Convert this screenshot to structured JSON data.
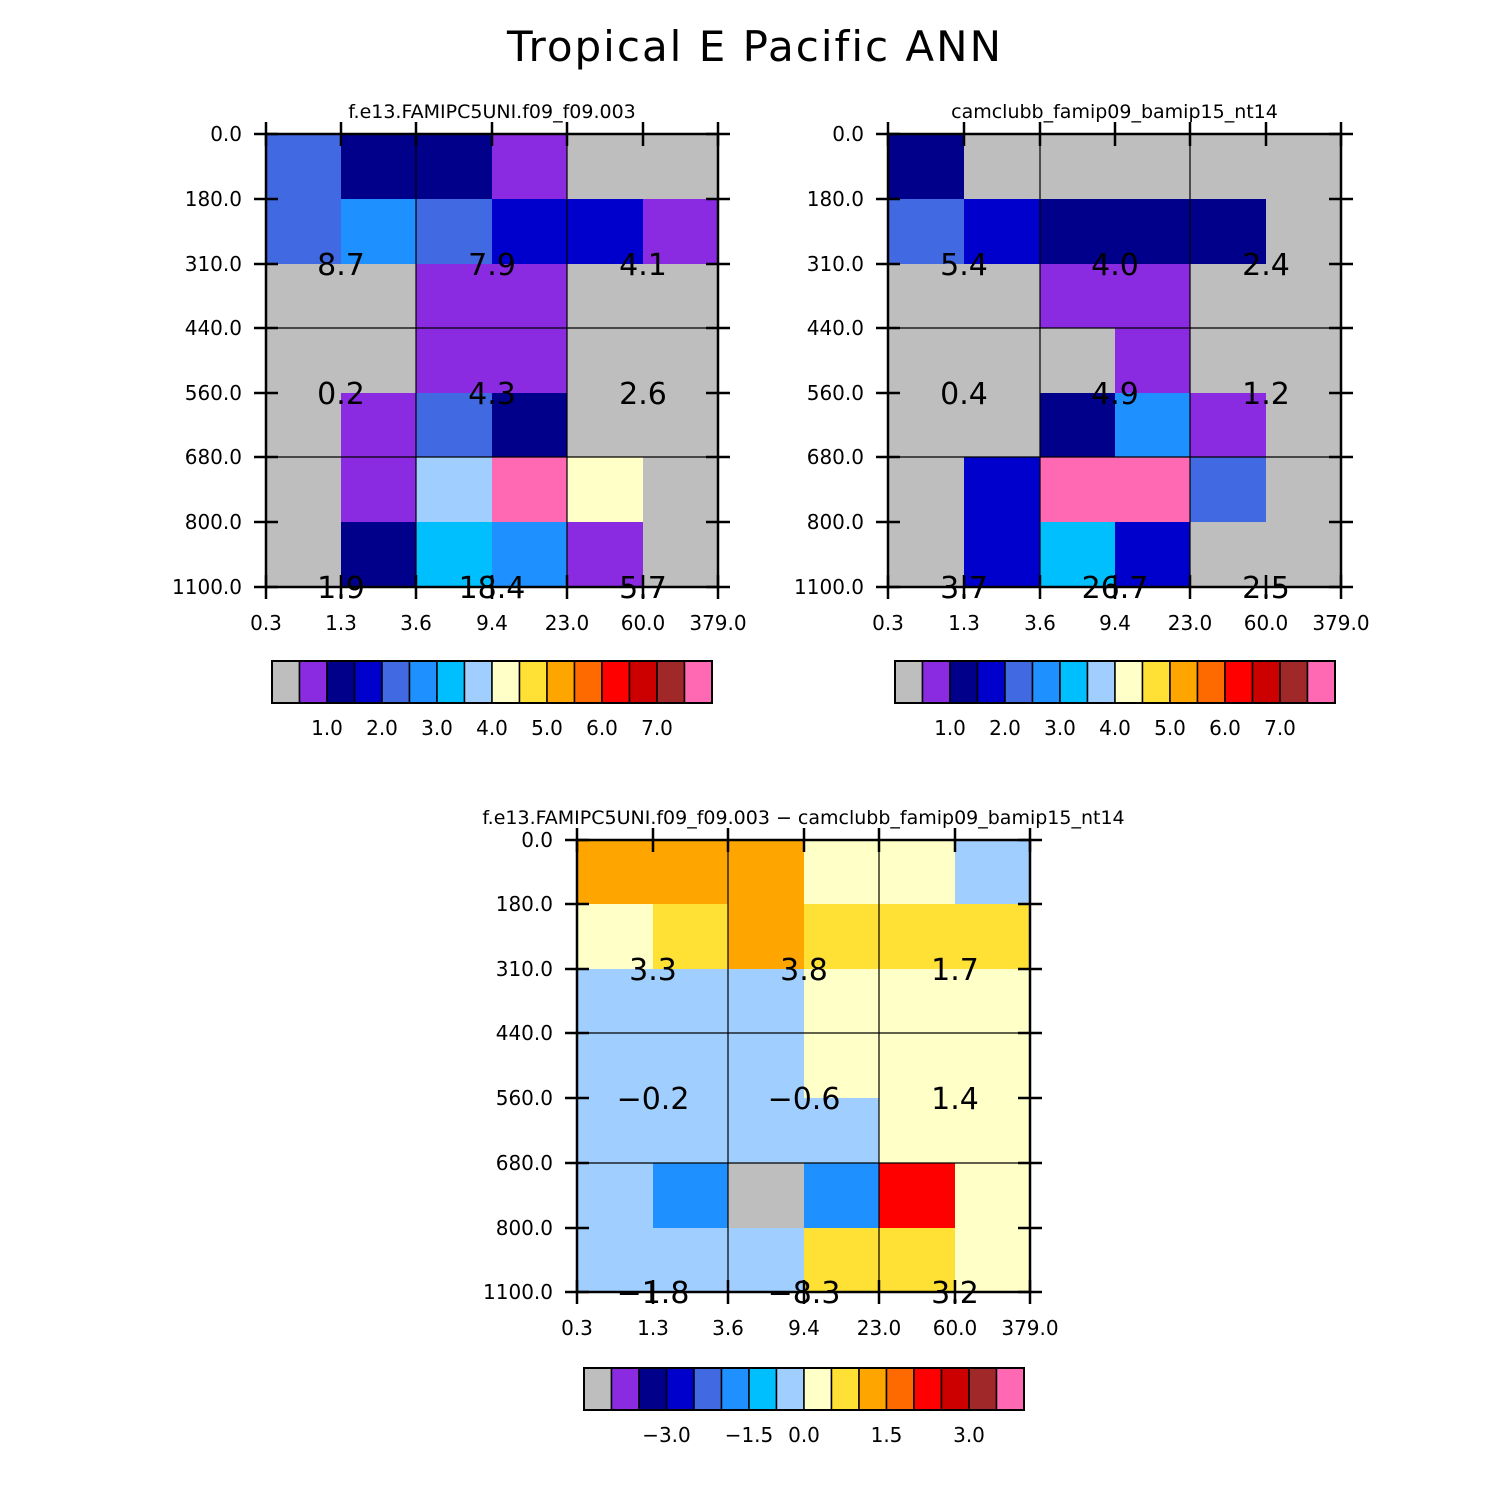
{
  "title": "Tropical E Pacific ANN",
  "colors": {
    "palette": [
      "#bebebe",
      "#8a2be2",
      "#00008b",
      "#0000cd",
      "#4169e1",
      "#1e90ff",
      "#00bfff",
      "#a0cfff",
      "#ffffc8",
      "#ffe135",
      "#ffa500",
      "#ff6a00",
      "#ff0000",
      "#cd0000",
      "#a02828",
      "#ff69b4"
    ],
    "background": "#ffffff",
    "axis": "#000000"
  },
  "chart_data": [
    {
      "type": "heatmap",
      "title": "f.e13.FAMIPC5UNI.f09_f09.003",
      "x_ticks": [
        "0.3",
        "1.3",
        "3.6",
        "9.4",
        "23.0",
        "60.0",
        "379.0"
      ],
      "y_ticks": [
        "0.0",
        "180.0",
        "310.0",
        "440.0",
        "560.0",
        "680.0",
        "800.0",
        "1100.0"
      ],
      "cells": [
        [
          4,
          2,
          2,
          1,
          0,
          0
        ],
        [
          4,
          5,
          4,
          3,
          3,
          1
        ],
        [
          0,
          0,
          1,
          1,
          0,
          0
        ],
        [
          0,
          0,
          1,
          1,
          0,
          0
        ],
        [
          0,
          1,
          4,
          2,
          0,
          0
        ],
        [
          0,
          1,
          7,
          15,
          8,
          0
        ],
        [
          0,
          2,
          6,
          5,
          1,
          0
        ]
      ],
      "annotations": [
        {
          "row": 1,
          "col": 1,
          "text": "8.7"
        },
        {
          "row": 1,
          "col": 3,
          "text": "7.9"
        },
        {
          "row": 1,
          "col": 5,
          "text": "4.1"
        },
        {
          "row": 3,
          "col": 1,
          "text": "0.2"
        },
        {
          "row": 3,
          "col": 3,
          "text": "4.3"
        },
        {
          "row": 3,
          "col": 5,
          "text": "2.6"
        },
        {
          "row": 6,
          "col": 1,
          "text": "1.9"
        },
        {
          "row": 6,
          "col": 3,
          "text": "18.4"
        },
        {
          "row": 6,
          "col": 5,
          "text": "5.7"
        }
      ],
      "colorbar_labels": [
        "1.0",
        "2.0",
        "3.0",
        "4.0",
        "5.0",
        "6.0",
        "7.0"
      ]
    },
    {
      "type": "heatmap",
      "title": "camclubb_famip09_bamip15_nt14",
      "x_ticks": [
        "0.3",
        "1.3",
        "3.6",
        "9.4",
        "23.0",
        "60.0",
        "379.0"
      ],
      "y_ticks": [
        "0.0",
        "180.0",
        "310.0",
        "440.0",
        "560.0",
        "680.0",
        "800.0",
        "1100.0"
      ],
      "cells": [
        [
          2,
          0,
          0,
          0,
          0,
          0
        ],
        [
          4,
          3,
          2,
          2,
          2,
          0
        ],
        [
          0,
          0,
          1,
          1,
          0,
          0
        ],
        [
          0,
          0,
          0,
          1,
          0,
          0
        ],
        [
          0,
          0,
          2,
          5,
          1,
          0
        ],
        [
          0,
          3,
          15,
          15,
          4,
          0
        ],
        [
          0,
          3,
          6,
          3,
          0,
          0
        ]
      ],
      "annotations": [
        {
          "row": 1,
          "col": 1,
          "text": "5.4"
        },
        {
          "row": 1,
          "col": 3,
          "text": "4.0"
        },
        {
          "row": 1,
          "col": 5,
          "text": "2.4"
        },
        {
          "row": 3,
          "col": 1,
          "text": "0.4"
        },
        {
          "row": 3,
          "col": 3,
          "text": "4.9"
        },
        {
          "row": 3,
          "col": 5,
          "text": "1.2"
        },
        {
          "row": 6,
          "col": 1,
          "text": "3.7"
        },
        {
          "row": 6,
          "col": 3,
          "text": "26.7"
        },
        {
          "row": 6,
          "col": 5,
          "text": "2.5"
        }
      ],
      "colorbar_labels": [
        "1.0",
        "2.0",
        "3.0",
        "4.0",
        "5.0",
        "6.0",
        "7.0"
      ]
    },
    {
      "type": "heatmap",
      "title": "f.e13.FAMIPC5UNI.f09_f09.003 − camclubb_famip09_bamip15_nt14",
      "x_ticks": [
        "0.3",
        "1.3",
        "3.6",
        "9.4",
        "23.0",
        "60.0",
        "379.0"
      ],
      "y_ticks": [
        "0.0",
        "180.0",
        "310.0",
        "440.0",
        "560.0",
        "680.0",
        "800.0",
        "1100.0"
      ],
      "cells": [
        [
          10,
          10,
          10,
          8,
          8,
          7
        ],
        [
          8,
          9,
          10,
          9,
          9,
          9
        ],
        [
          7,
          7,
          7,
          8,
          8,
          8
        ],
        [
          7,
          7,
          7,
          8,
          8,
          8
        ],
        [
          7,
          7,
          7,
          7,
          8,
          8
        ],
        [
          7,
          5,
          0,
          5,
          12,
          8
        ],
        [
          7,
          7,
          7,
          9,
          9,
          8
        ]
      ],
      "annotations": [
        {
          "row": 1,
          "col": 1,
          "text": "3.3"
        },
        {
          "row": 1,
          "col": 3,
          "text": "3.8"
        },
        {
          "row": 1,
          "col": 5,
          "text": "1.7"
        },
        {
          "row": 3,
          "col": 1,
          "text": "−0.2"
        },
        {
          "row": 3,
          "col": 3,
          "text": "−0.6"
        },
        {
          "row": 3,
          "col": 5,
          "text": "1.4"
        },
        {
          "row": 6,
          "col": 1,
          "text": "−1.8"
        },
        {
          "row": 6,
          "col": 3,
          "text": "−8.3"
        },
        {
          "row": 6,
          "col": 5,
          "text": "3.2"
        }
      ],
      "colorbar_labels": [
        "−3.0",
        "−1.5",
        "0.0",
        "1.5",
        "3.0"
      ]
    }
  ]
}
